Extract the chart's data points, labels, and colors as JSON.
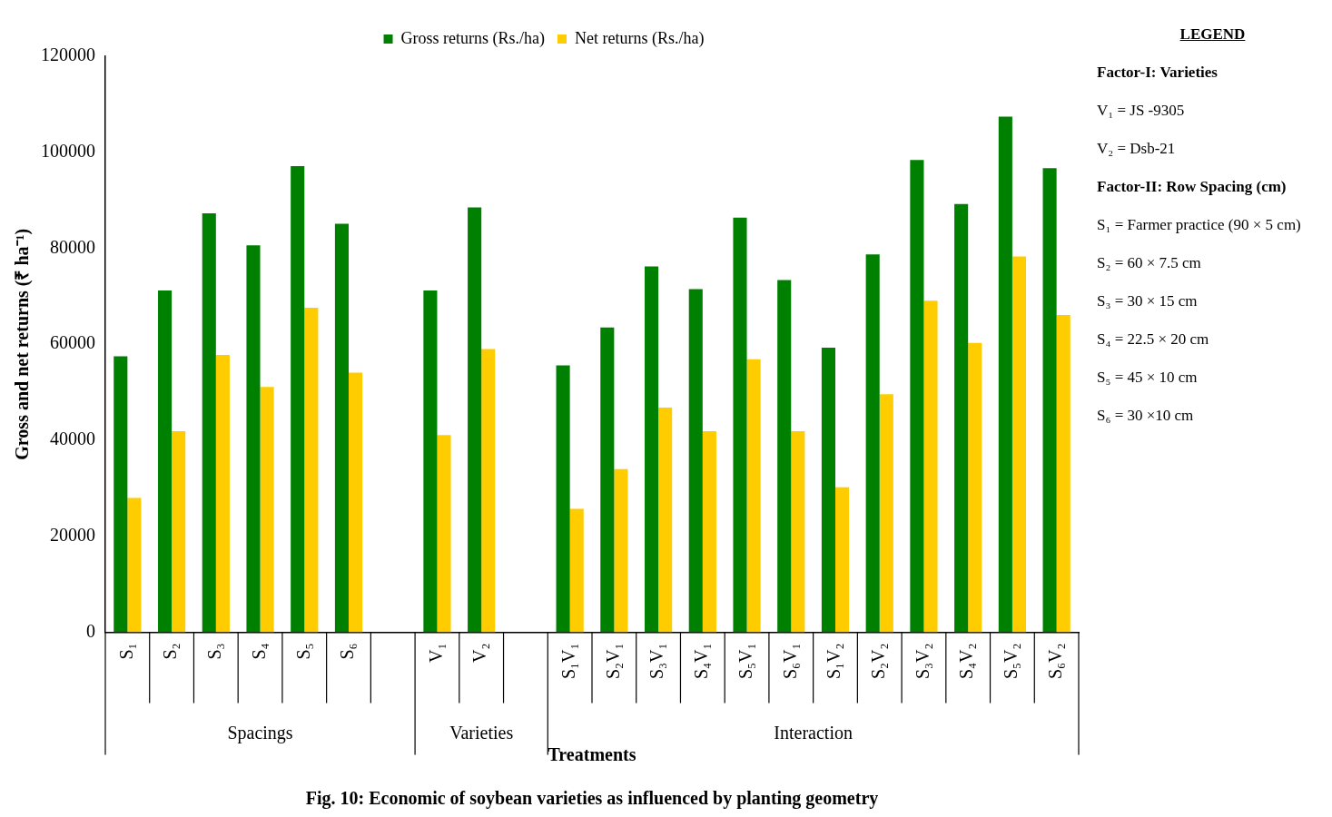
{
  "chart_data": {
    "type": "bar",
    "title": "Fig. 10: Economic of soybean varieties as influenced by planting geometry",
    "xlabel": "Treatments",
    "ylabel": "Gross and net returns (₹ ha⁻¹)",
    "categories": [
      "S₁",
      "S₂",
      "S₃",
      "S₄",
      "S₅",
      "S₆",
      null,
      "V₁",
      "V₂",
      null,
      "S₁V₁",
      "S₂V₁",
      "S₃V₁",
      "S₄V₁",
      "S₅V₁",
      "S₆V₁",
      "S₁V₂",
      "S₂V₂",
      "S₃V₂",
      "S₄V₂",
      "S₅V₂",
      "S₆V₂"
    ],
    "series": [
      {
        "name": "Gross returns (Rs./ha)",
        "color": "#008000",
        "values": [
          57500,
          71200,
          87300,
          80600,
          97100,
          85100,
          null,
          71200,
          88500,
          null,
          55600,
          63500,
          76200,
          71500,
          86400,
          73400,
          59300,
          78700,
          98400,
          89200,
          107400,
          96700
        ]
      },
      {
        "name": "Net returns (Rs./ha)",
        "color": "#ffcc00",
        "values": [
          28000,
          41900,
          57800,
          51100,
          67600,
          54100,
          null,
          41100,
          59000,
          null,
          25700,
          34000,
          46800,
          41900,
          56900,
          41900,
          30200,
          49600,
          69100,
          60300,
          78300,
          66100
        ]
      }
    ],
    "ylim": [
      0,
      120000
    ],
    "yticks": [
      0,
      20000,
      40000,
      60000,
      80000,
      100000,
      120000
    ],
    "grid": false,
    "legend": "top",
    "annotations": [
      "Spacings",
      "Varieties",
      "Interaction",
      "LEGEND",
      "Factor-I: Varieties",
      "V₁ = JS -9305",
      "V₂ = Dsb-21",
      "Factor-II: Row Spacing (cm)",
      "S₁ = Farmer practice (90 × 5 cm)",
      "S₂ = 60 × 7.5 cm",
      "S₃ = 30 × 15 cm",
      "S₄ = 22.5 × 20 cm",
      "S₅ = 45 × 10 cm",
      "S₆ = 30 ×10 cm"
    ]
  }
}
